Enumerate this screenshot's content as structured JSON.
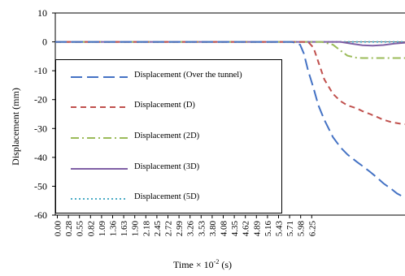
{
  "chart_data": {
    "type": "line",
    "xlabel_main": "Time × 10",
    "xlabel_exp": "-2",
    "xlabel_unit": " (s)",
    "ylabel": "Displacement (mm)",
    "ylim": [
      -60,
      10
    ],
    "yticks": [
      10,
      0,
      -10,
      -20,
      -30,
      -40,
      -50,
      -60
    ],
    "x_ticks": [
      "0.00",
      "0.28",
      "0.55",
      "0.82",
      "1.09",
      "1.36",
      "1.63",
      "1.90",
      "2.18",
      "2.45",
      "2.72",
      "2.99",
      "3.26",
      "3.53",
      "3.80",
      "4.08",
      "4.35",
      "4.62",
      "4.89",
      "5.16",
      "5.43",
      "5.71",
      "5.98",
      "6.25"
    ],
    "x_range": [
      0,
      6.5
    ],
    "grid": "off",
    "legend_placement": "left",
    "series": [
      {
        "name": "Displacement (Over the tunnel)",
        "color": "#4472C4",
        "dash": "long-dash",
        "x": [
          0,
          4.4,
          4.55,
          4.62,
          4.7,
          4.8,
          4.89,
          5.0,
          5.16,
          5.3,
          5.43,
          5.6,
          5.71,
          5.85,
          5.98,
          6.1,
          6.25,
          6.35,
          6.5
        ],
        "y": [
          0,
          0,
          -1,
          -4,
          -10,
          -16,
          -22,
          -27,
          -33,
          -36.5,
          -39,
          -41.5,
          -43,
          -45,
          -47,
          -49,
          -51,
          -52.5,
          -54
        ]
      },
      {
        "name": "Displacement (D)",
        "color": "#C0504D",
        "dash": "dash",
        "x": [
          0,
          4.7,
          4.8,
          4.89,
          5.0,
          5.16,
          5.3,
          5.43,
          5.6,
          5.71,
          5.85,
          5.98,
          6.1,
          6.25,
          6.4,
          6.5
        ],
        "y": [
          0,
          0,
          -2,
          -7,
          -13,
          -18,
          -20.5,
          -22,
          -23,
          -24,
          -25,
          -26,
          -27,
          -27.8,
          -28.3,
          -28.5
        ]
      },
      {
        "name": "Displacement (2D)",
        "color": "#9BBB59",
        "dash": "dash-dot",
        "x": [
          0,
          4.95,
          5.16,
          5.3,
          5.43,
          5.6,
          5.71,
          5.98,
          6.25,
          6.5
        ],
        "y": [
          0,
          0,
          -1,
          -3,
          -4.8,
          -5.5,
          -5.6,
          -5.6,
          -5.6,
          -5.6
        ]
      },
      {
        "name": "Displacement (3D)",
        "color": "#7F5FA5",
        "dash": "solid",
        "x": [
          0,
          5.3,
          5.5,
          5.71,
          5.9,
          6.1,
          6.3,
          6.5
        ],
        "y": [
          0,
          0,
          -0.6,
          -1.2,
          -1.3,
          -1.1,
          -0.6,
          -0.3
        ]
      },
      {
        "name": "Displacement (5D)",
        "color": "#4BACC6",
        "dash": "dotted",
        "x": [
          0,
          6.5
        ],
        "y": [
          0,
          0
        ]
      }
    ]
  }
}
